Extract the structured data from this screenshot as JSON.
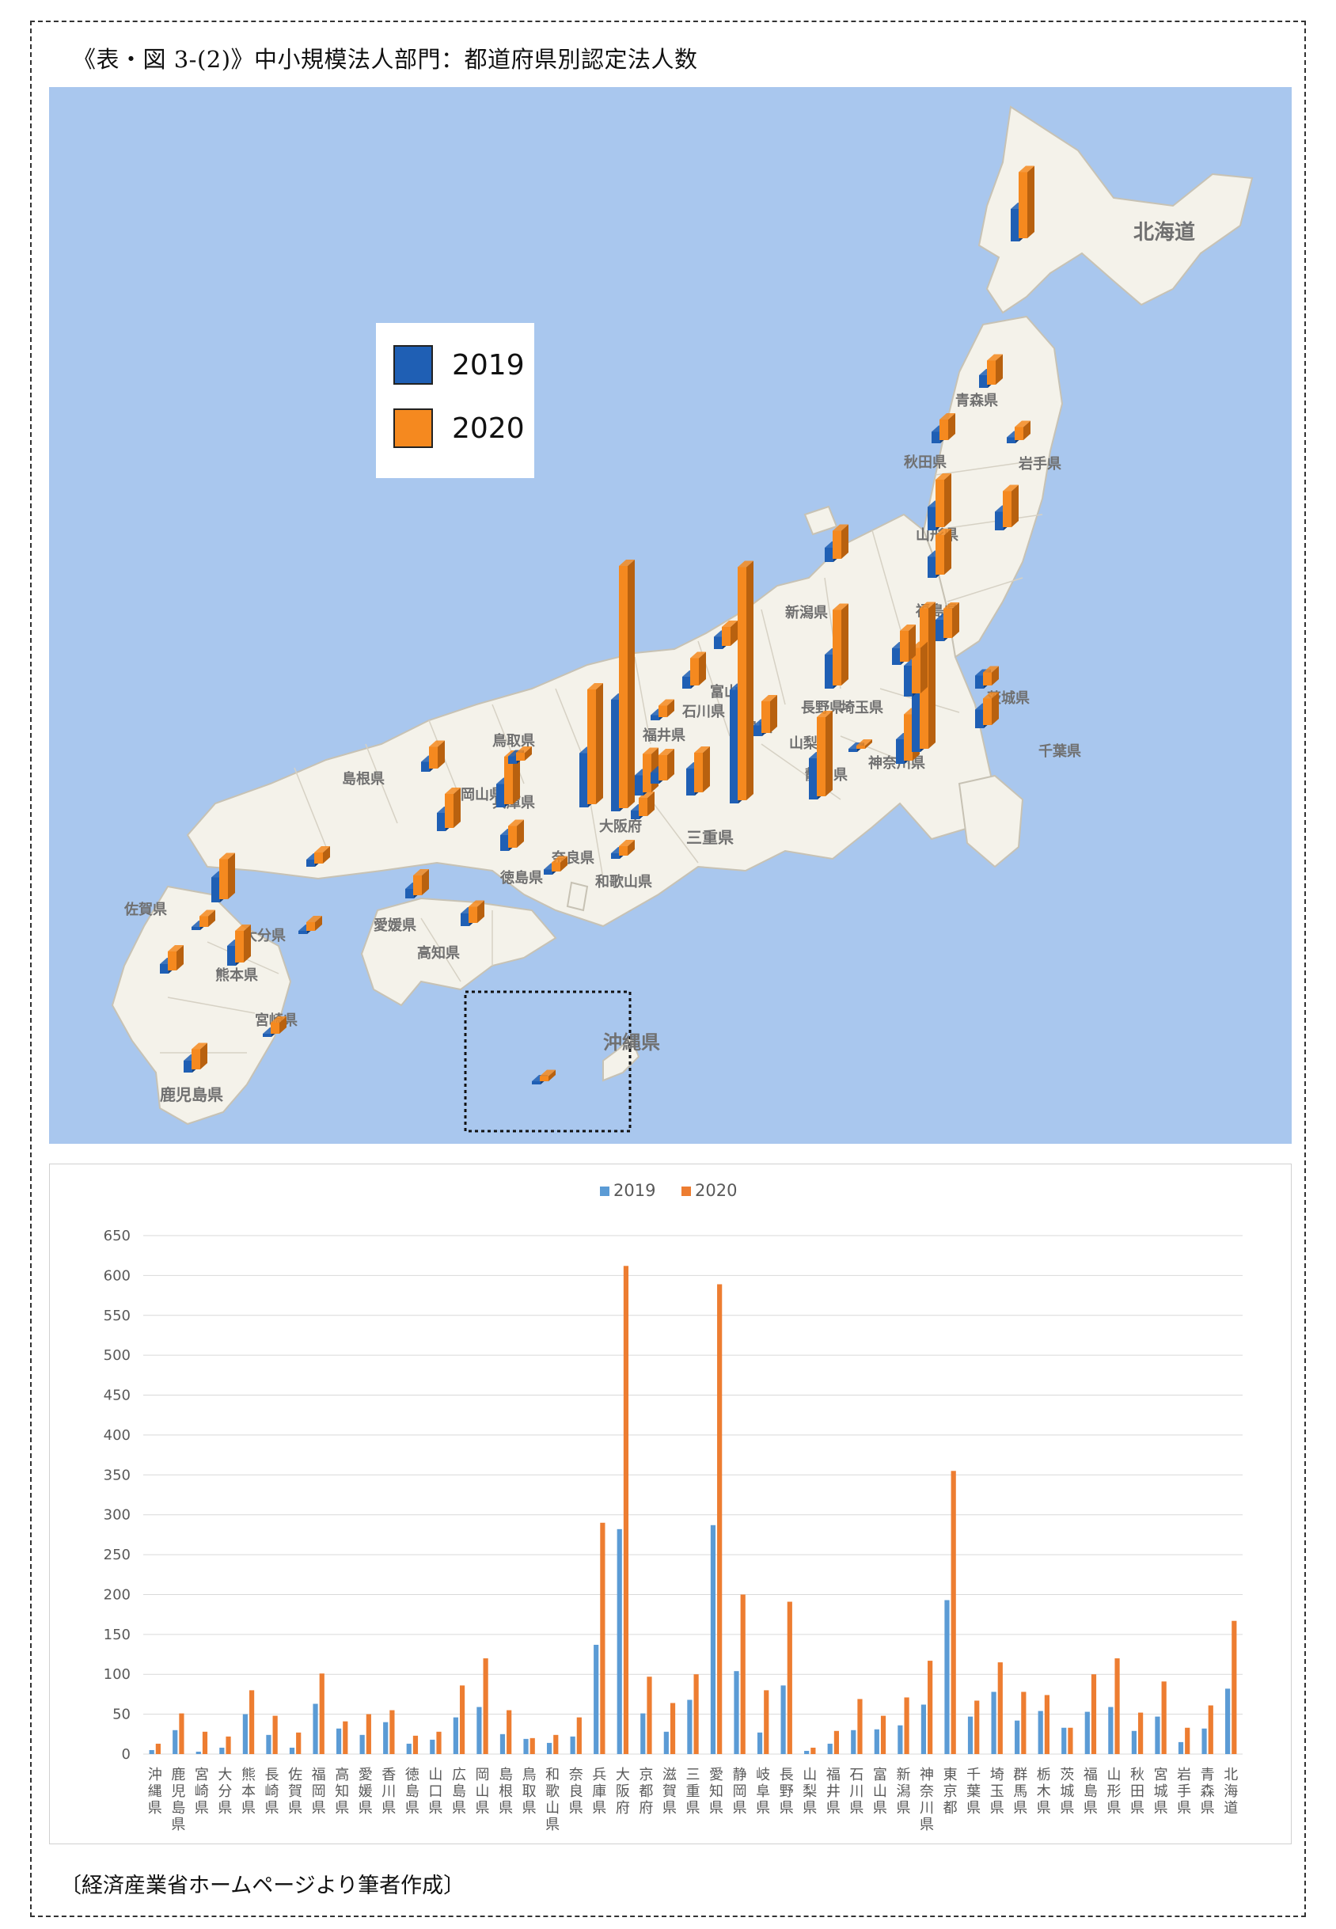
{
  "figure_title": "《表・図 3-(2)》中小規模法人部門：都道府県別認定法人数",
  "source_note": "〔経済産業省ホームページより筆者作成〕",
  "map": {
    "legend": [
      {
        "label": "2019",
        "color": "#1f5fb4"
      },
      {
        "label": "2020",
        "color": "#f5891f"
      }
    ],
    "place_labels": [
      "北海道",
      "沖縄県",
      "千葉県",
      "鹿児島県",
      "宮崎県",
      "愛媛県",
      "高知県",
      "島根県",
      "三重県",
      "兵庫県",
      "大阪府",
      "和歌山県",
      "長野県",
      "静岡県",
      "神奈川県",
      "富山県",
      "新潟県",
      "青森県",
      "秋田県",
      "岩手県",
      "山形県",
      "福島県",
      "茨城県",
      "埼玉県",
      "山梨県",
      "福井県",
      "石川県",
      "岐阜県",
      "奈良県",
      "佐賀県",
      "大分県",
      "熊本県",
      "徳島県",
      "岡山県",
      "鳥取県"
    ],
    "colors": {
      "sea": "#a9c7ee",
      "land": "#f4f2ea",
      "border": "#c7c2b4",
      "bar2019": "#1f5fb4",
      "bar2020": "#f5891f"
    }
  },
  "chart_data": {
    "type": "bar",
    "legend": [
      "2019",
      "2020"
    ],
    "colors": {
      "2019": "#5b9bd5",
      "2020": "#ed7d31"
    },
    "ylim": [
      0,
      650
    ],
    "yticks": [
      0,
      50,
      100,
      150,
      200,
      250,
      300,
      350,
      400,
      450,
      500,
      550,
      600,
      650
    ],
    "categories": [
      "沖縄県",
      "鹿児島県",
      "宮崎県",
      "大分県",
      "熊本県",
      "長崎県",
      "佐賀県",
      "福岡県",
      "高知県",
      "愛媛県",
      "香川県",
      "徳島県",
      "山口県",
      "広島県",
      "岡山県",
      "島根県",
      "鳥取県",
      "和歌山県",
      "奈良県",
      "兵庫県",
      "大阪府",
      "京都府",
      "滋賀県",
      "三重県",
      "愛知県",
      "静岡県",
      "岐阜県",
      "長野県",
      "山梨県",
      "福井県",
      "石川県",
      "富山県",
      "新潟県",
      "神奈川県",
      "東京都",
      "千葉県",
      "埼玉県",
      "群馬県",
      "栃木県",
      "茨城県",
      "福島県",
      "山形県",
      "秋田県",
      "宮城県",
      "岩手県",
      "青森県",
      "北海道"
    ],
    "series": [
      {
        "name": "2019",
        "values": [
          5,
          30,
          3,
          8,
          50,
          24,
          8,
          63,
          32,
          24,
          40,
          13,
          18,
          46,
          59,
          25,
          19,
          14,
          22,
          137,
          282,
          51,
          28,
          68,
          287,
          104,
          27,
          86,
          4,
          13,
          30,
          31,
          36,
          62,
          193,
          47,
          78,
          42,
          54,
          33,
          53,
          59,
          29,
          47,
          15,
          32,
          82
        ]
      },
      {
        "name": "2020",
        "values": [
          13,
          51,
          28,
          22,
          80,
          48,
          27,
          101,
          41,
          50,
          55,
          23,
          28,
          86,
          120,
          55,
          20,
          24,
          46,
          290,
          612,
          97,
          64,
          100,
          589,
          200,
          80,
          191,
          8,
          29,
          69,
          48,
          71,
          117,
          355,
          67,
          115,
          78,
          74,
          33,
          100,
          120,
          52,
          91,
          33,
          61,
          167
        ]
      }
    ]
  }
}
